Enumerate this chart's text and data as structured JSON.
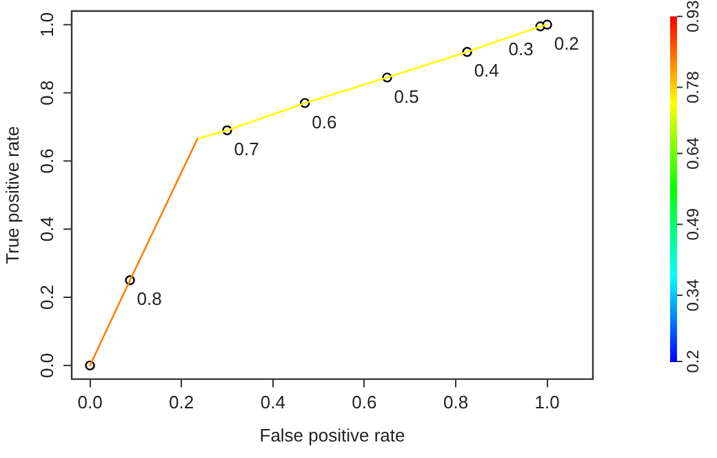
{
  "chart_data": {
    "type": "line",
    "xlabel": "False positive rate",
    "ylabel": "True positive rate",
    "xlim": [
      -0.04,
      1.1
    ],
    "ylim": [
      -0.04,
      1.04
    ],
    "xticks": [
      {
        "value": 0,
        "label": "0.0"
      },
      0.2,
      0.4,
      0.6,
      0.8,
      {
        "value": 1,
        "label": "1.0"
      }
    ],
    "yticks": [
      {
        "value": 0,
        "label": "0.0"
      },
      0.2,
      0.4,
      0.6,
      0.8,
      {
        "value": 1,
        "label": "1.0"
      }
    ],
    "clim": [
      0.2,
      0.93
    ],
    "cticks": [
      0.2,
      0.34,
      0.49,
      0.64,
      0.78,
      0.93
    ],
    "grid": false,
    "legend": false,
    "series": [
      {
        "type": "line",
        "x": [
          0,
          0.0875,
          0.235
        ],
        "values": [
          0,
          0.25,
          0.665
        ],
        "color": "#ff7f00",
        "marker": "none"
      },
      {
        "type": "line",
        "x": [
          0.235,
          0.3,
          0.47,
          0.65,
          0.825,
          0.985,
          1
        ],
        "values": [
          0.665,
          0.69,
          0.77,
          0.845,
          0.92,
          0.995,
          1
        ],
        "color": "#ffff00",
        "marker": "none"
      },
      {
        "type": "scatter",
        "x": [
          0,
          0.0875,
          0.3,
          0.47,
          0.65,
          0.825,
          0.985,
          1
        ],
        "values": [
          0,
          0.25,
          0.69,
          0.77,
          0.845,
          0.92,
          0.995,
          1
        ],
        "color": "#000000",
        "marker": "circle"
      }
    ],
    "annotations": [
      {
        "text": "0.8",
        "x": 0.0875,
        "y": 0.25
      },
      {
        "text": "0.7",
        "x": 0.3,
        "y": 0.69
      },
      {
        "text": "0.6",
        "x": 0.47,
        "y": 0.77
      },
      {
        "text": "0.5",
        "x": 0.65,
        "y": 0.845
      },
      {
        "text": "0.4",
        "x": 0.825,
        "y": 0.92
      },
      {
        "text": "0.3",
        "x": 0.985,
        "y": 0.995
      },
      {
        "text": "0.2",
        "x": 1,
        "y": 1
      }
    ]
  }
}
